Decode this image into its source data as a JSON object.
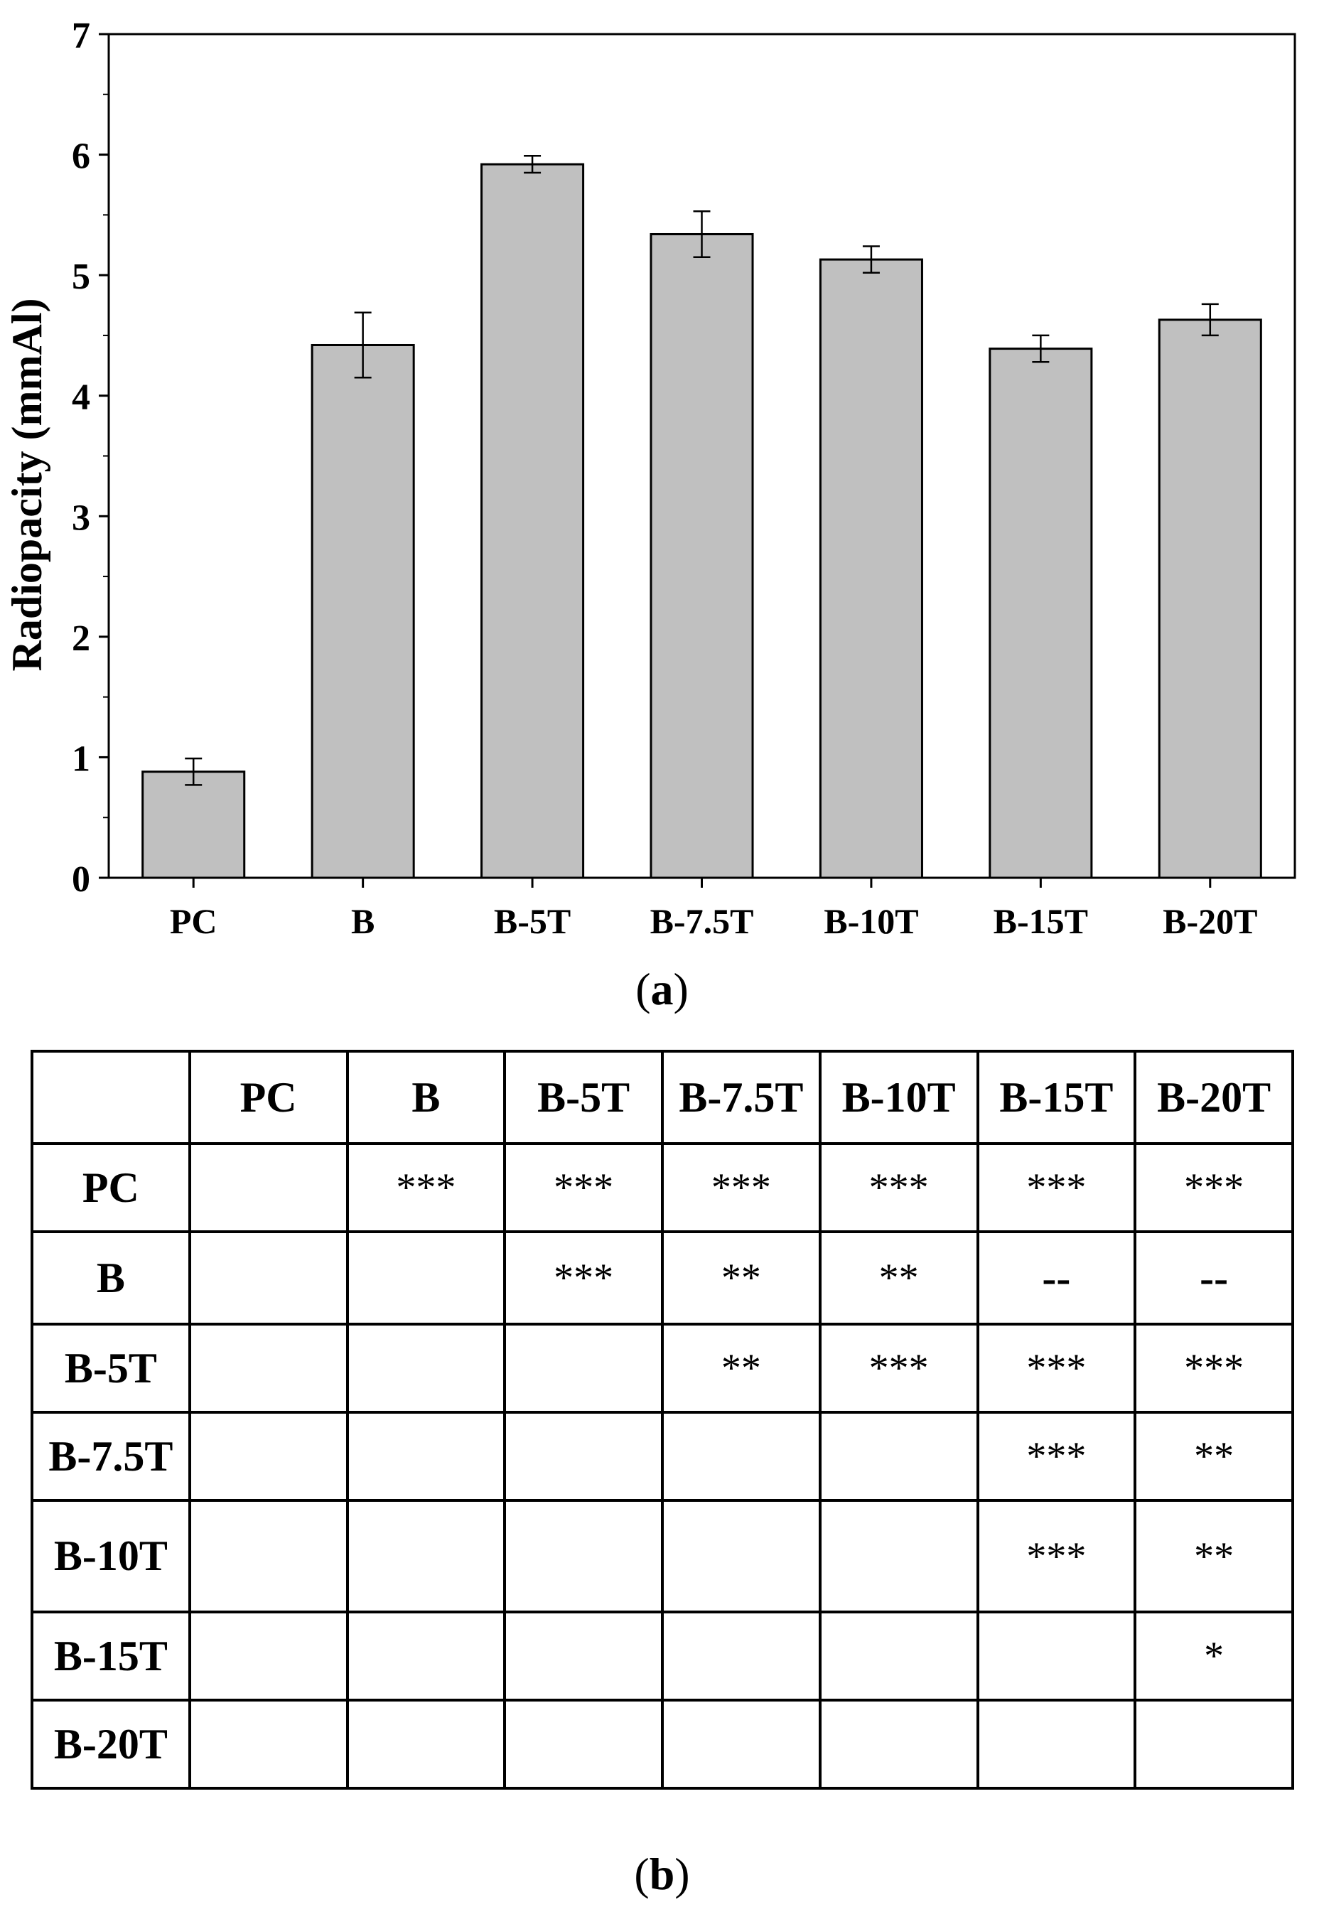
{
  "chart_data": {
    "type": "bar",
    "categories": [
      "PC",
      "B",
      "B-5T",
      "B-7.5T",
      "B-10T",
      "B-15T",
      "B-20T"
    ],
    "values": [
      0.88,
      4.42,
      5.92,
      5.34,
      5.13,
      4.39,
      4.63
    ],
    "errors": [
      0.11,
      0.27,
      0.07,
      0.19,
      0.11,
      0.11,
      0.13
    ],
    "ylabel": "Radiopacity (mmAl)",
    "ylim": [
      0,
      7
    ],
    "yticks": [
      0,
      1,
      2,
      3,
      4,
      5,
      6,
      7
    ],
    "bar_color": "#c0c0c0",
    "grid": false
  },
  "panel_labels": {
    "a": "a",
    "b": "b"
  },
  "table": {
    "columns": [
      "",
      "PC",
      "B",
      "B-5T",
      "B-7.5T",
      "B-10T",
      "B-15T",
      "B-20T"
    ],
    "rows": [
      {
        "label": "PC",
        "cells": [
          "",
          "***",
          "***",
          "***",
          "***",
          "***",
          "***"
        ]
      },
      {
        "label": "B",
        "cells": [
          "",
          "",
          "***",
          "**",
          "**",
          "--",
          "--"
        ]
      },
      {
        "label": "B-5T",
        "cells": [
          "",
          "",
          "",
          "**",
          "***",
          "***",
          "***"
        ]
      },
      {
        "label": "B-7.5T",
        "cells": [
          "",
          "",
          "",
          "",
          "",
          "***",
          "**"
        ]
      },
      {
        "label": "B-10T",
        "cells": [
          "",
          "",
          "",
          "",
          "",
          "***",
          "**"
        ]
      },
      {
        "label": "B-15T",
        "cells": [
          "",
          "",
          "",
          "",
          "",
          "",
          "*"
        ]
      },
      {
        "label": "B-20T",
        "cells": [
          "",
          "",
          "",
          "",
          "",
          "",
          ""
        ]
      }
    ]
  }
}
